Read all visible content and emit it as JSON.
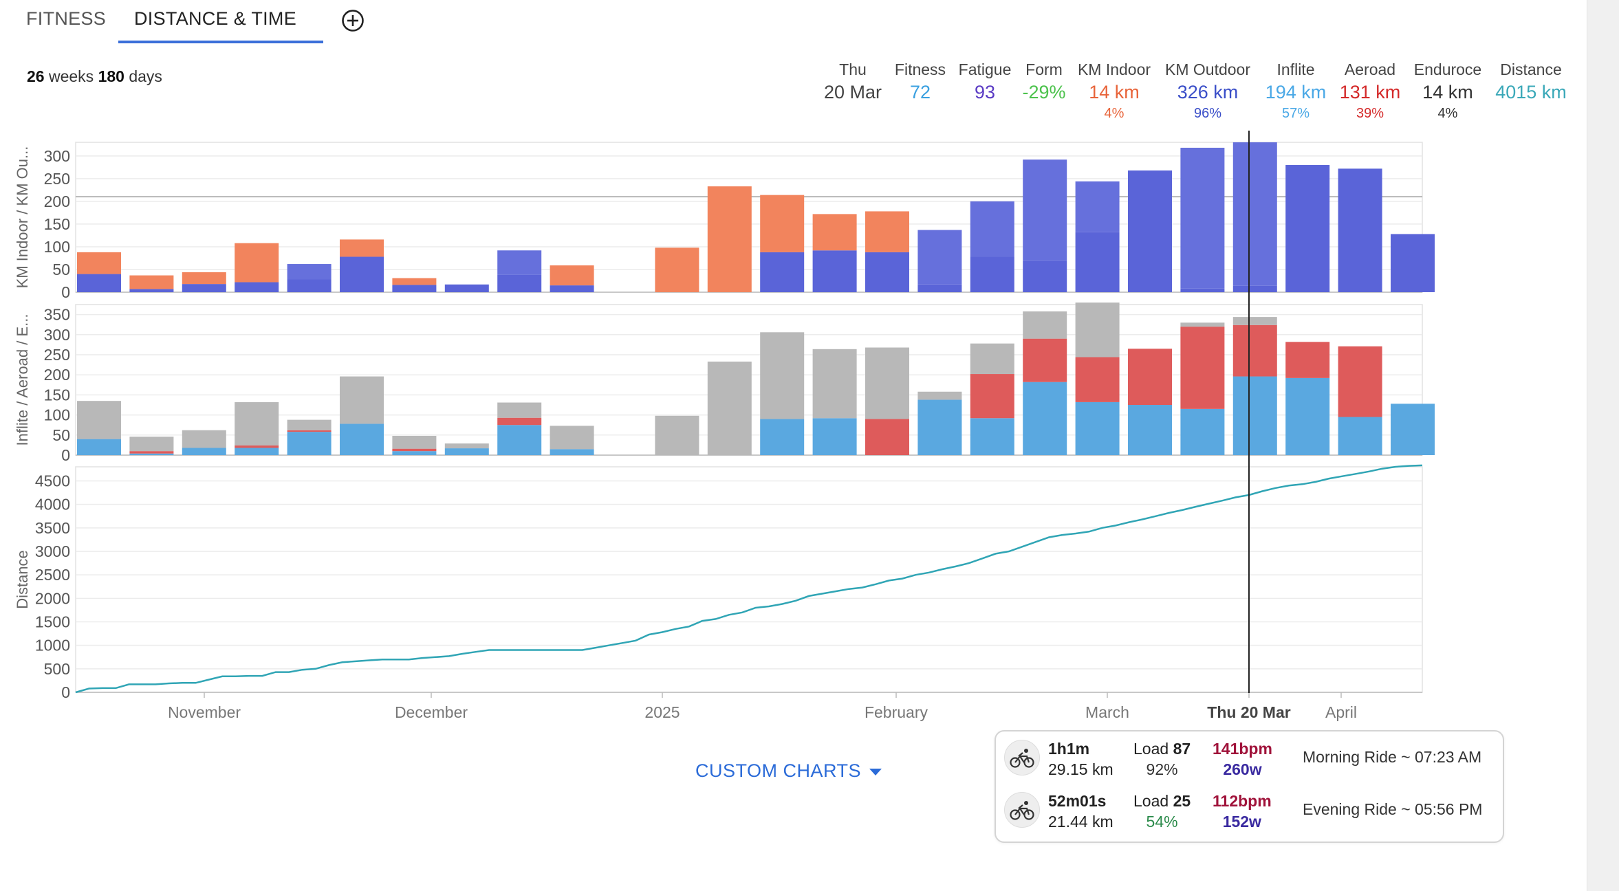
{
  "tabs": [
    {
      "label": "FITNESS",
      "active": false
    },
    {
      "label": "DISTANCE & TIME",
      "active": true
    }
  ],
  "range": {
    "weeks": "26",
    "weeks_label": "weeks",
    "days": "180",
    "days_label": "days"
  },
  "stats": [
    {
      "label": "Thu",
      "value": "20 Mar",
      "sub": "",
      "color": "#444444"
    },
    {
      "label": "Fitness",
      "value": "72",
      "sub": "",
      "color": "#3aa0e0"
    },
    {
      "label": "Fatigue",
      "value": "93",
      "sub": "",
      "color": "#5b3cc4"
    },
    {
      "label": "Form",
      "value": "-29%",
      "sub": "",
      "color": "#4cc24c"
    },
    {
      "label": "KM Indoor",
      "value": "14 km",
      "sub": "4%",
      "color": "#e8643a"
    },
    {
      "label": "KM Outdoor",
      "value": "326 km",
      "sub": "96%",
      "color": "#3a4ec8"
    },
    {
      "label": "Inflite",
      "value": "194 km",
      "sub": "57%",
      "color": "#4aa8e6"
    },
    {
      "label": "Aeroad",
      "value": "131 km",
      "sub": "39%",
      "color": "#d42a2a"
    },
    {
      "label": "Enduroce",
      "value": "14 km",
      "sub": "4%",
      "color": "#333333"
    },
    {
      "label": "Distance",
      "value": "4015 km",
      "sub": "",
      "color": "#3aa8b8"
    }
  ],
  "chart_data": [
    {
      "type": "bar",
      "stacked": true,
      "ylabel": "KM Indoor / KM Ou...",
      "ylim": [
        0,
        330
      ],
      "yticks": [
        0,
        50,
        100,
        150,
        200,
        250,
        300
      ],
      "reference_line": 210,
      "series": [
        {
          "name": "KM Outdoor",
          "color": "#5a64d8",
          "values": [
            40,
            7,
            18,
            22,
            28,
            78,
            16,
            17,
            38,
            15,
            0,
            0,
            0,
            88,
            92,
            88,
            17,
            78,
            70,
            132,
            268,
            8,
            14,
            280,
            272,
            128
          ]
        },
        {
          "name": "KM Indoor",
          "color": "#f2845d",
          "values": [
            48,
            30,
            26,
            86,
            0,
            38,
            15,
            0,
            0,
            44,
            0,
            98,
            233,
            126,
            80,
            90,
            0,
            0,
            0,
            0,
            0,
            0,
            0,
            0,
            0,
            0
          ]
        },
        {
          "name": "KM Outdoor",
          "color": "#6670dc",
          "values": [
            0,
            0,
            0,
            0,
            34,
            0,
            0,
            0,
            54,
            0,
            0,
            0,
            0,
            0,
            0,
            0,
            120,
            122,
            222,
            112,
            0,
            310,
            316,
            0,
            0,
            0
          ]
        }
      ]
    },
    {
      "type": "bar",
      "stacked": true,
      "ylabel": "Inflite / Aeroad / E...",
      "ylim": [
        0,
        375
      ],
      "yticks": [
        0,
        50,
        100,
        150,
        200,
        250,
        300,
        350
      ],
      "series": [
        {
          "name": "Inflite",
          "color": "#5aa8e0",
          "values": [
            40,
            4,
            18,
            18,
            58,
            78,
            10,
            17,
            75,
            15,
            0,
            0,
            0,
            90,
            92,
            0,
            138,
            92,
            182,
            132,
            125,
            115,
            196,
            192,
            95,
            128
          ]
        },
        {
          "name": "Aeroad",
          "color": "#de5b5b",
          "values": [
            0,
            6,
            0,
            6,
            4,
            0,
            6,
            0,
            18,
            0,
            0,
            0,
            0,
            0,
            0,
            90,
            0,
            110,
            108,
            112,
            140,
            205,
            128,
            90,
            176,
            0
          ]
        },
        {
          "name": "Enduroce",
          "color": "#b8b8b8",
          "values": [
            95,
            36,
            44,
            108,
            26,
            118,
            32,
            12,
            38,
            58,
            0,
            98,
            233,
            216,
            172,
            178,
            20,
            76,
            68,
            136,
            0,
            10,
            20,
            0,
            0,
            0
          ]
        }
      ]
    },
    {
      "type": "line",
      "ylabel": "Distance",
      "ylim": [
        0,
        4800
      ],
      "yticks": [
        0,
        500,
        1000,
        1500,
        2000,
        2500,
        3000,
        3500,
        4000,
        4500
      ],
      "x_ticks": [
        "November",
        "December",
        "2025",
        "February",
        "March",
        "Thu 20 Mar",
        "April"
      ],
      "color": "#30a5b5",
      "values": [
        0,
        80,
        90,
        90,
        170,
        170,
        170,
        190,
        200,
        200,
        270,
        340,
        340,
        350,
        350,
        430,
        430,
        480,
        500,
        580,
        640,
        660,
        680,
        700,
        700,
        700,
        730,
        750,
        770,
        820,
        860,
        900,
        900,
        900,
        900,
        900,
        900,
        900,
        900,
        950,
        1000,
        1050,
        1100,
        1230,
        1280,
        1350,
        1400,
        1520,
        1560,
        1650,
        1700,
        1800,
        1830,
        1880,
        1950,
        2050,
        2100,
        2150,
        2200,
        2230,
        2300,
        2380,
        2420,
        2500,
        2550,
        2620,
        2680,
        2750,
        2850,
        2950,
        3000,
        3100,
        3200,
        3300,
        3350,
        3380,
        3420,
        3500,
        3550,
        3620,
        3680,
        3750,
        3820,
        3880,
        3950,
        4015,
        4080,
        4150,
        4200,
        4280,
        4350,
        4400,
        4430,
        4480,
        4550,
        4600,
        4650,
        4700,
        4760,
        4800,
        4820,
        4830
      ]
    }
  ],
  "cursor": {
    "label": "Thu 20 Mar"
  },
  "custom_charts": {
    "label": "CUSTOM CHARTS"
  },
  "activities": [
    {
      "duration": "1h1m",
      "distance": "29.15 km",
      "load_label": "Load",
      "load": "87",
      "load_pct": "92%",
      "load_pct_color": "#333333",
      "hr": "141bpm",
      "power": "260w",
      "name": "Morning Ride ~ 07:23 AM"
    },
    {
      "duration": "52m01s",
      "distance": "21.44 km",
      "load_label": "Load",
      "load": "25",
      "load_pct": "54%",
      "load_pct_color": "#2a8a4a",
      "hr": "112bpm",
      "power": "152w",
      "name": "Evening Ride ~ 05:56 PM"
    }
  ]
}
